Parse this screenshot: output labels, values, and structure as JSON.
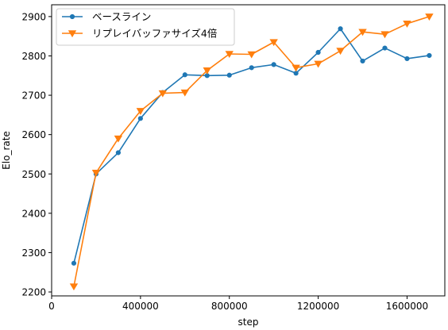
{
  "chart_data": {
    "type": "line",
    "xlabel": "step",
    "ylabel": "Elo_rate",
    "xlim": [
      0,
      1770000
    ],
    "ylim": [
      2190,
      2930
    ],
    "x_ticks": [
      0,
      400000,
      800000,
      1200000,
      1600000
    ],
    "x_tick_labels": [
      "0",
      "400000",
      "800000",
      "1200000",
      "1600000"
    ],
    "y_ticks": [
      2200,
      2300,
      2400,
      2500,
      2600,
      2700,
      2800,
      2900
    ],
    "y_tick_labels": [
      "2200",
      "2300",
      "2400",
      "2500",
      "2600",
      "2700",
      "2800",
      "2900"
    ],
    "grid": false,
    "legend_position": "upper-left",
    "x": [
      100000,
      200000,
      300000,
      400000,
      500000,
      600000,
      700000,
      800000,
      900000,
      1000000,
      1100000,
      1200000,
      1300000,
      1400000,
      1500000,
      1600000,
      1700000
    ],
    "series": [
      {
        "name": "ベースライン",
        "color": "#1f77b4",
        "marker": "circle",
        "values": [
          2273,
          2500,
          2554,
          2641,
          2707,
          2752,
          2750,
          2751,
          2770,
          2778,
          2756,
          2809,
          2869,
          2787,
          2820,
          2793,
          2801
        ]
      },
      {
        "name": "リプレイバッファサイズ4倍",
        "color": "#ff7f0e",
        "marker": "triangle-down",
        "values": [
          2214,
          2503,
          2590,
          2660,
          2705,
          2707,
          2763,
          2805,
          2804,
          2835,
          2770,
          2780,
          2813,
          2861,
          2855,
          2882,
          2900
        ]
      }
    ]
  }
}
